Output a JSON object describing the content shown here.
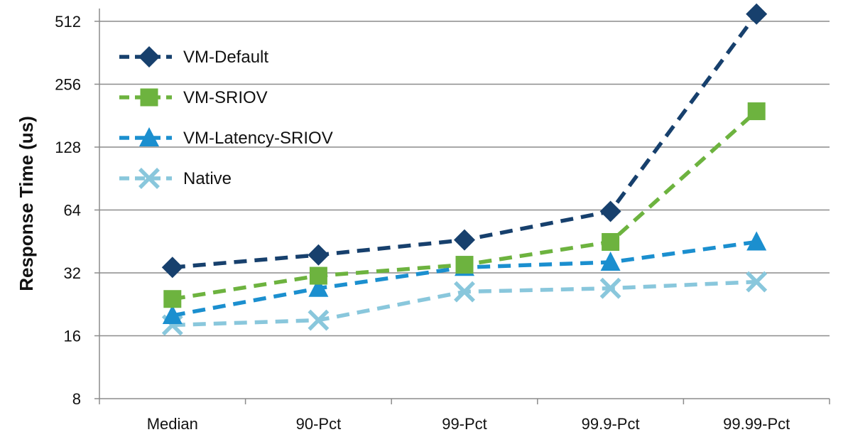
{
  "chart_data": {
    "type": "line",
    "title": "",
    "xlabel": "",
    "ylabel": "Response Time (us)",
    "yscale": "log2",
    "ylim": [
      8,
      600
    ],
    "yticks": [
      8,
      16,
      32,
      64,
      128,
      256,
      512
    ],
    "ytick_labels": [
      "8",
      "16",
      "32",
      "64",
      "128",
      "256",
      "512"
    ],
    "grid": "horizontal",
    "legend_position": "top-left",
    "categories": [
      "Median",
      "90-Pct",
      "99-Pct",
      "99.9-Pct",
      "99.99-Pct"
    ],
    "series": [
      {
        "name": "VM-Default",
        "color": "#17406d",
        "marker": "diamond",
        "values": [
          34,
          39,
          46,
          63,
          555
        ]
      },
      {
        "name": "VM-SRIOV",
        "color": "#6db33f",
        "marker": "square",
        "values": [
          24,
          31,
          35,
          45,
          190
        ]
      },
      {
        "name": "VM-Latency-SRIOV",
        "color": "#1b8fcf",
        "marker": "triangle",
        "values": [
          20,
          27,
          34,
          36,
          45
        ]
      },
      {
        "name": "Native",
        "color": "#89c7dc",
        "marker": "x",
        "values": [
          18,
          19,
          26,
          27,
          29
        ]
      }
    ]
  }
}
